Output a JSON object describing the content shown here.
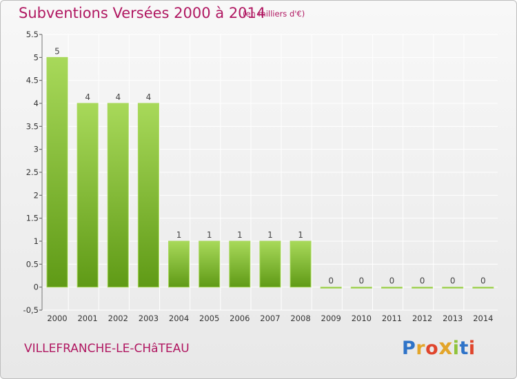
{
  "header": {
    "title": "Subventions Versées 2000 à 2014",
    "unit_note": "(en milliers d'€)"
  },
  "footer": {
    "commune": "VILLEFRANCHE-LE-CHâTEAU",
    "logo_text": "Proxiti",
    "logo_colors": [
      "#2e73c8",
      "#e3a52a",
      "#e0452c",
      "#e3a52a",
      "#8fc33a",
      "#2e73c8",
      "#e0452c"
    ]
  },
  "colors": {
    "title": "#b01761",
    "bar_light": "#a8d95a",
    "bar_dark": "#5f9a16",
    "grid": "#ffffff",
    "axis_text": "#333333"
  },
  "chart_data": {
    "type": "bar",
    "categories": [
      "2000",
      "2001",
      "2002",
      "2003",
      "2004",
      "2005",
      "2006",
      "2007",
      "2008",
      "2009",
      "2010",
      "2011",
      "2012",
      "2013",
      "2014"
    ],
    "values": [
      5,
      4,
      4,
      4,
      1,
      1,
      1,
      1,
      1,
      0,
      0,
      0,
      0,
      0,
      0
    ],
    "data_labels": [
      "5",
      "4",
      "4",
      "4",
      "1",
      "1",
      "1",
      "1",
      "1",
      "0",
      "0",
      "0",
      "0",
      "0",
      "0"
    ],
    "y_ticks": [
      -0.5,
      0,
      0.5,
      1,
      1.5,
      2,
      2.5,
      3,
      3.5,
      4,
      4.5,
      5,
      5.5
    ],
    "y_tick_labels": [
      "-0,5",
      "0",
      "0.5",
      "1",
      "1.5",
      "2",
      "2.5",
      "3",
      "3.5",
      "4",
      "4.5",
      "5",
      "5.5"
    ],
    "ylim": [
      -0.5,
      5.5
    ],
    "grid": true
  }
}
